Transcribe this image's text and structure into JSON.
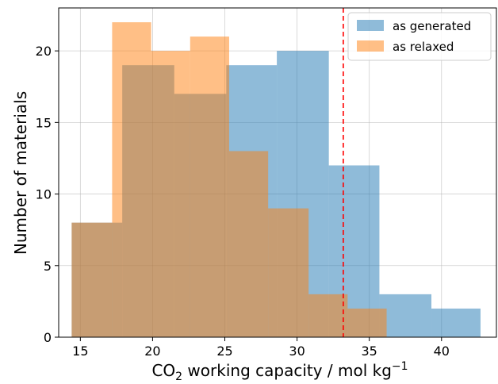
{
  "chart_data": {
    "type": "histogram",
    "xlabel_parts": {
      "pre": "CO",
      "sub": "2",
      "mid": " working capacity / mol kg",
      "sup": "−1"
    },
    "ylabel": "Number of materials",
    "xlim": [
      13.5,
      43.8
    ],
    "ylim": [
      0,
      23
    ],
    "xticks": [
      15,
      20,
      25,
      30,
      35,
      40
    ],
    "yticks": [
      0,
      5,
      10,
      15,
      20
    ],
    "grid": true,
    "legend_position": "top-right",
    "series": [
      {
        "name": "as generated",
        "color": "#1f77b4",
        "bins": [
          {
            "x0": 14.4,
            "x1": 17.9,
            "count": 8
          },
          {
            "x0": 17.9,
            "x1": 21.5,
            "count": 19
          },
          {
            "x0": 21.5,
            "x1": 25.1,
            "count": 17
          },
          {
            "x0": 25.1,
            "x1": 28.6,
            "count": 19
          },
          {
            "x0": 28.6,
            "x1": 32.2,
            "count": 20
          },
          {
            "x0": 32.2,
            "x1": 35.7,
            "count": 12
          },
          {
            "x0": 35.7,
            "x1": 39.3,
            "count": 3
          },
          {
            "x0": 39.3,
            "x1": 42.7,
            "count": 2
          }
        ]
      },
      {
        "name": "as relaxed",
        "color": "#ff7f0e",
        "bins": [
          {
            "x0": 14.4,
            "x1": 17.2,
            "count": 8
          },
          {
            "x0": 17.2,
            "x1": 19.9,
            "count": 22
          },
          {
            "x0": 19.9,
            "x1": 22.6,
            "count": 20
          },
          {
            "x0": 22.6,
            "x1": 25.3,
            "count": 21
          },
          {
            "x0": 25.3,
            "x1": 28.0,
            "count": 13
          },
          {
            "x0": 28.0,
            "x1": 30.8,
            "count": 9
          },
          {
            "x0": 30.8,
            "x1": 33.5,
            "count": 3
          },
          {
            "x0": 33.5,
            "x1": 36.2,
            "count": 2
          }
        ]
      }
    ],
    "reference_line": {
      "x": 33.2,
      "color": "#ff0000",
      "style": "dashed"
    }
  }
}
